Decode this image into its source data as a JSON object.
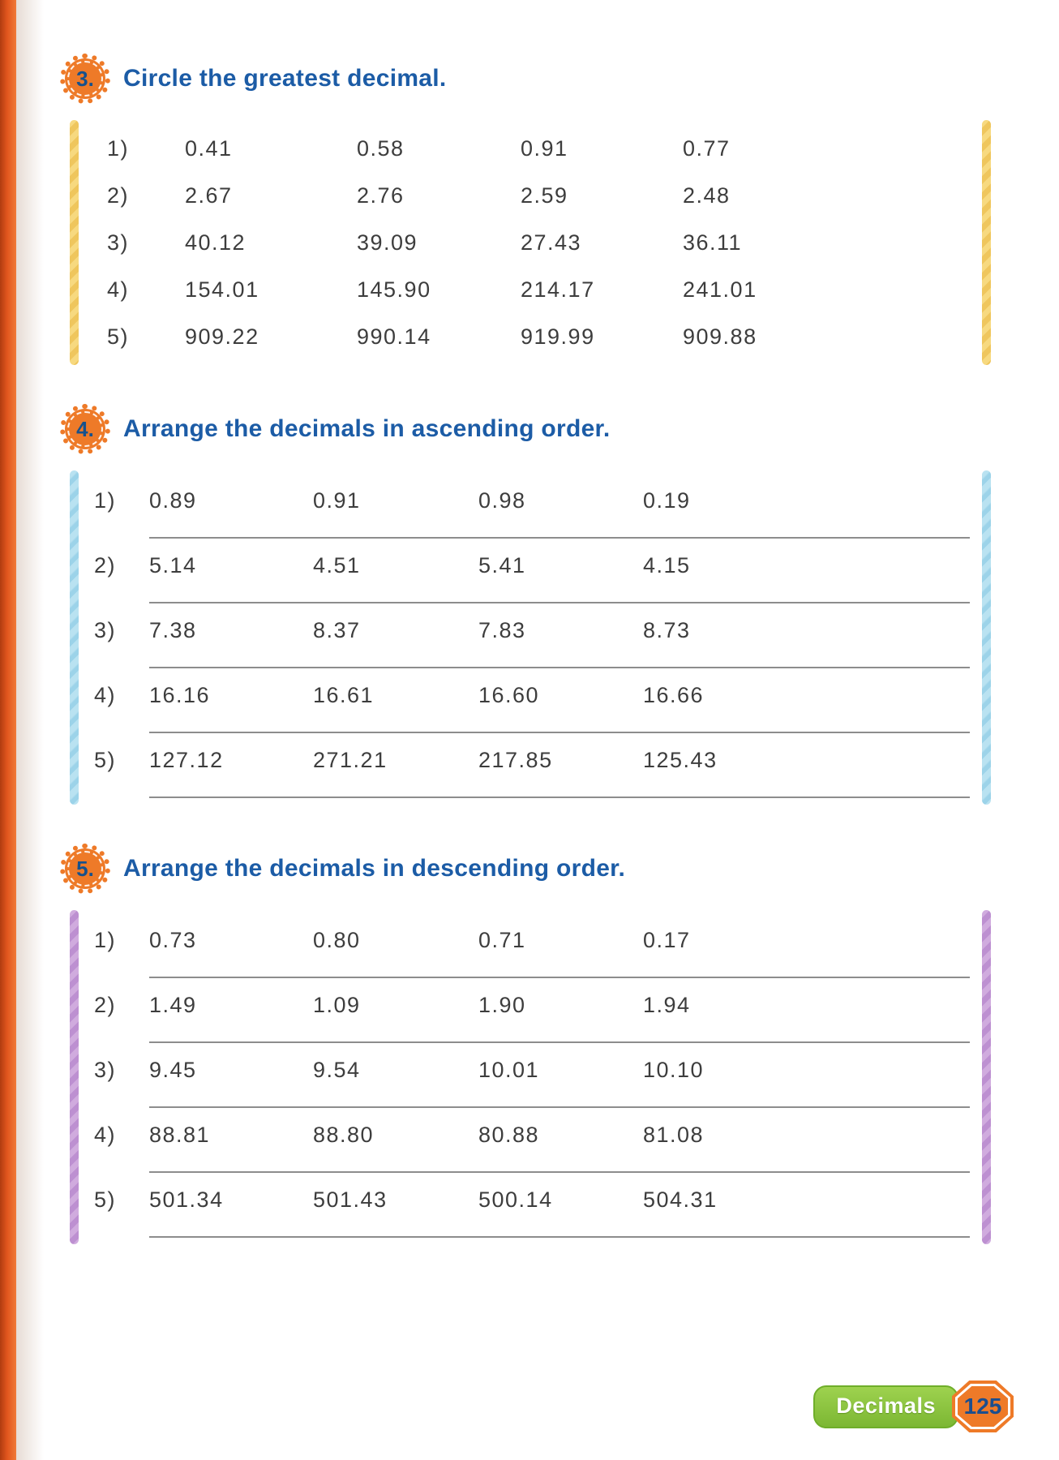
{
  "page": {
    "footer": {
      "section_label": "Decimals",
      "page_number": "125"
    }
  },
  "colors": {
    "heading_blue": "#1c5ca6",
    "badge_orange": "#ee7a28",
    "badge_number_blue": "#16518c",
    "spine_orange": "#e2561e",
    "accent_yellow": "#f3cf6e",
    "accent_blue": "#aadcee",
    "accent_purple": "#c79fd7",
    "footer_green": "#8cc63e",
    "value_gray": "#3d3d3d"
  },
  "exercises": [
    {
      "number": "3.",
      "title": "Circle the greatest decimal.",
      "accent": "yellow",
      "rows": [
        {
          "label": "1)",
          "values": [
            "0.41",
            "0.58",
            "0.91",
            "0.77"
          ]
        },
        {
          "label": "2)",
          "values": [
            "2.67",
            "2.76",
            "2.59",
            "2.48"
          ]
        },
        {
          "label": "3)",
          "values": [
            "40.12",
            "39.09",
            "27.43",
            "36.11"
          ]
        },
        {
          "label": "4)",
          "values": [
            "154.01",
            "145.90",
            "214.17",
            "241.01"
          ]
        },
        {
          "label": "5)",
          "values": [
            "909.22",
            "990.14",
            "919.99",
            "909.88"
          ]
        }
      ]
    },
    {
      "number": "4.",
      "title": "Arrange the decimals in ascending order.",
      "accent": "blue",
      "rows": [
        {
          "label": "1)",
          "values": [
            "0.89",
            "0.91",
            "0.98",
            "0.19"
          ]
        },
        {
          "label": "2)",
          "values": [
            "5.14",
            "4.51",
            "5.41",
            "4.15"
          ]
        },
        {
          "label": "3)",
          "values": [
            "7.38",
            "8.37",
            "7.83",
            "8.73"
          ]
        },
        {
          "label": "4)",
          "values": [
            "16.16",
            "16.61",
            "16.60",
            "16.66"
          ]
        },
        {
          "label": "5)",
          "values": [
            "127.12",
            "271.21",
            "217.85",
            "125.43"
          ]
        }
      ]
    },
    {
      "number": "5.",
      "title": "Arrange the decimals in descending order.",
      "accent": "purple",
      "rows": [
        {
          "label": "1)",
          "values": [
            "0.73",
            "0.80",
            "0.71",
            "0.17"
          ]
        },
        {
          "label": "2)",
          "values": [
            "1.49",
            "1.09",
            "1.90",
            "1.94"
          ]
        },
        {
          "label": "3)",
          "values": [
            "9.45",
            "9.54",
            "10.01",
            "10.10"
          ]
        },
        {
          "label": "4)",
          "values": [
            "88.81",
            "88.80",
            "80.88",
            "81.08"
          ]
        },
        {
          "label": "5)",
          "values": [
            "501.34",
            "501.43",
            "500.14",
            "504.31"
          ]
        }
      ]
    }
  ]
}
